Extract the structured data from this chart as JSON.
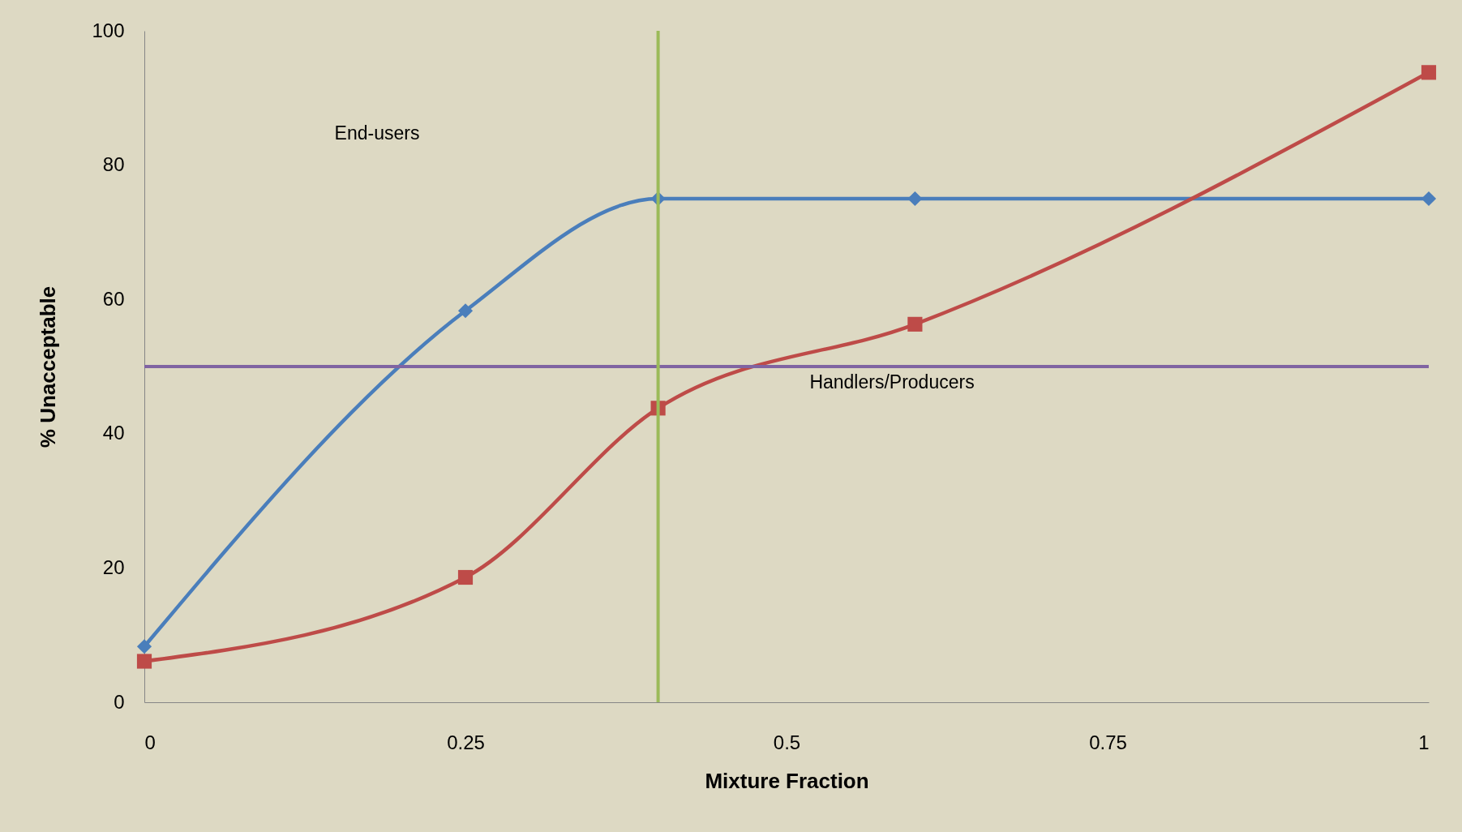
{
  "chart_data": {
    "type": "line",
    "xlabel": "Mixture Fraction",
    "ylabel": "% Unacceptable",
    "x": [
      0,
      0.25,
      0.4,
      0.6,
      1
    ],
    "series": [
      {
        "color": "#4a7ebb",
        "marker": "diamond",
        "values": [
          8.3,
          58.3,
          75,
          75,
          75
        ]
      },
      {
        "color": "#be4b48",
        "marker": "square",
        "values": [
          6.1,
          18.6,
          43.8,
          56.3,
          93.8
        ]
      }
    ],
    "xlim": [
      0,
      1
    ],
    "xticks": [
      0,
      0.25,
      0.5,
      0.75,
      1
    ],
    "ylim": [
      0,
      100
    ],
    "yticks": [
      0,
      20,
      40,
      60,
      80,
      100
    ],
    "ref_lines": [
      {
        "axis": "y",
        "value": 50,
        "color": "#8064a2"
      },
      {
        "axis": "x",
        "value": 0.4,
        "color": "#9bbb59"
      }
    ],
    "annotations": [
      "End-users",
      "Handlers/Producers"
    ],
    "grid": false
  }
}
